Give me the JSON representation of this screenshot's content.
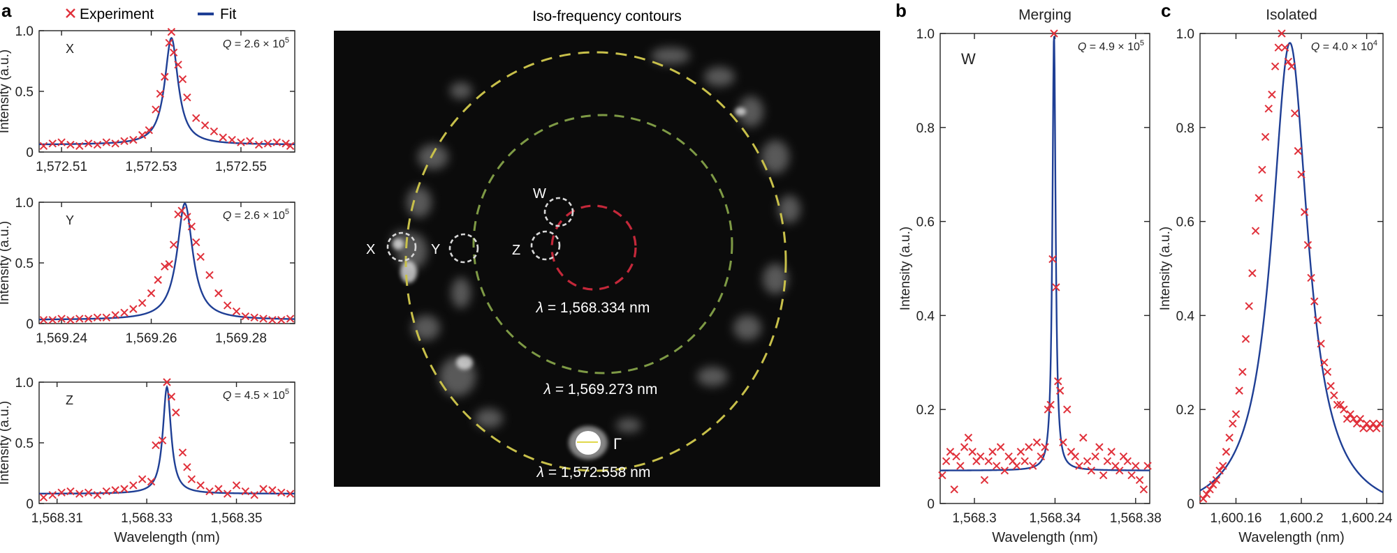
{
  "legend": {
    "experiment_label": "Experiment",
    "fit_label": "Fit"
  },
  "panel_letters": {
    "a": "a",
    "b": "b",
    "c": "c"
  },
  "colors": {
    "experiment": "#e0303a",
    "fit": "#1f3f95",
    "axis": "#222222",
    "image_bg": "#0b0b0b",
    "contour_outer": "#c8c04a",
    "contour_middle": "#7e9a45",
    "contour_inner": "#c4283a",
    "marker_circle": "#d8d8d8",
    "image_text": "#ffffff"
  },
  "chart_data": [
    {
      "id": "aX",
      "type": "scatter",
      "mode_label": "X",
      "q_text": [
        "Q",
        " = 2.6 × 10",
        "5"
      ],
      "xlabel": "",
      "ylabel": "Intensity (a.u.)",
      "xlim": [
        1572.505,
        1572.562
      ],
      "ylim": [
        0,
        1.0
      ],
      "xticks": [
        1572.51,
        1572.53,
        1572.55
      ],
      "xtick_labels": [
        "1,572.51",
        "1,572.53",
        "1,572.55"
      ],
      "yticks": [
        0,
        0.5,
        1.0
      ],
      "ytick_labels": [
        "0",
        "0.5",
        "1.0"
      ],
      "fit": {
        "center": 1572.5345,
        "hwhm": 0.0018,
        "offset": 0.06,
        "amp": 0.88
      },
      "series": [
        {
          "name": "Experiment",
          "x": [
            1572.506,
            1572.508,
            1572.51,
            1572.512,
            1572.514,
            1572.516,
            1572.518,
            1572.52,
            1572.522,
            1572.524,
            1572.526,
            1572.528,
            1572.5295,
            1572.531,
            1572.532,
            1572.533,
            1572.534,
            1572.5345,
            1572.535,
            1572.536,
            1572.537,
            1572.538,
            1572.54,
            1572.542,
            1572.544,
            1572.546,
            1572.548,
            1572.55,
            1572.552,
            1572.554,
            1572.556,
            1572.558,
            1572.56,
            1572.561
          ],
          "y": [
            0.05,
            0.07,
            0.08,
            0.06,
            0.05,
            0.07,
            0.06,
            0.08,
            0.07,
            0.09,
            0.1,
            0.14,
            0.18,
            0.35,
            0.48,
            0.62,
            0.9,
            0.99,
            0.82,
            0.72,
            0.6,
            0.45,
            0.28,
            0.22,
            0.17,
            0.12,
            0.1,
            0.08,
            0.09,
            0.06,
            0.07,
            0.08,
            0.07,
            0.05
          ]
        }
      ]
    },
    {
      "id": "aY",
      "type": "scatter",
      "mode_label": "Y",
      "q_text": [
        "Q",
        " = 2.6 × 10",
        "5"
      ],
      "xlabel": "",
      "ylabel": "Intensity (a.u.)",
      "xlim": [
        1569.235,
        1569.292
      ],
      "ylim": [
        0,
        1.0
      ],
      "xticks": [
        1569.24,
        1569.26,
        1569.28
      ],
      "xtick_labels": [
        "1,569.24",
        "1,569.26",
        "1,569.28"
      ],
      "yticks": [
        0,
        0.5,
        1.0
      ],
      "ytick_labels": [
        "0",
        "0.5",
        "1.0"
      ],
      "fit": {
        "center": 1569.2675,
        "hwhm": 0.0021,
        "offset": 0.03,
        "amp": 0.96
      },
      "series": [
        {
          "name": "Experiment",
          "x": [
            1569.236,
            1569.238,
            1569.24,
            1569.242,
            1569.244,
            1569.246,
            1569.248,
            1569.25,
            1569.252,
            1569.254,
            1569.256,
            1569.258,
            1569.26,
            1569.2615,
            1569.263,
            1569.264,
            1569.265,
            1569.266,
            1569.2668,
            1569.268,
            1569.269,
            1569.27,
            1569.271,
            1569.273,
            1569.275,
            1569.277,
            1569.279,
            1569.281,
            1569.283,
            1569.285,
            1569.287,
            1569.289,
            1569.291
          ],
          "y": [
            0.03,
            0.03,
            0.04,
            0.03,
            0.04,
            0.04,
            0.05,
            0.05,
            0.07,
            0.09,
            0.12,
            0.17,
            0.25,
            0.36,
            0.47,
            0.49,
            0.65,
            0.9,
            0.93,
            0.88,
            0.8,
            0.67,
            0.55,
            0.4,
            0.25,
            0.15,
            0.1,
            0.06,
            0.05,
            0.04,
            0.03,
            0.03,
            0.04
          ]
        }
      ]
    },
    {
      "id": "aZ",
      "type": "scatter",
      "mode_label": "Z",
      "q_text": [
        "Q",
        " = 4.5 × 10",
        "5"
      ],
      "xlabel": "Wavelength (nm)",
      "ylabel": "Intensity (a.u.)",
      "xlim": [
        1568.306,
        1568.363
      ],
      "ylim": [
        0,
        1.0
      ],
      "xticks": [
        1568.31,
        1568.33,
        1568.35
      ],
      "xtick_labels": [
        "1,568.31",
        "1,568.33",
        "1,568.35"
      ],
      "yticks": [
        0,
        0.5,
        1.0
      ],
      "ytick_labels": [
        "0",
        "0.5",
        "1.0"
      ],
      "fit": {
        "center": 1568.3345,
        "hwhm": 0.0011,
        "offset": 0.08,
        "amp": 0.88
      },
      "series": [
        {
          "name": "Experiment",
          "x": [
            1568.307,
            1568.309,
            1568.311,
            1568.313,
            1568.315,
            1568.317,
            1568.319,
            1568.321,
            1568.323,
            1568.325,
            1568.327,
            1568.329,
            1568.331,
            1568.332,
            1568.3335,
            1568.3345,
            1568.3355,
            1568.3365,
            1568.338,
            1568.339,
            1568.34,
            1568.342,
            1568.344,
            1568.346,
            1568.348,
            1568.35,
            1568.352,
            1568.354,
            1568.356,
            1568.358,
            1568.36,
            1568.362
          ],
          "y": [
            0.05,
            0.07,
            0.09,
            0.1,
            0.08,
            0.09,
            0.07,
            0.1,
            0.11,
            0.12,
            0.15,
            0.2,
            0.18,
            0.48,
            0.52,
            1.0,
            0.88,
            0.75,
            0.42,
            0.3,
            0.2,
            0.15,
            0.1,
            0.12,
            0.08,
            0.15,
            0.1,
            0.07,
            0.12,
            0.11,
            0.09,
            0.08
          ]
        }
      ]
    },
    {
      "id": "b",
      "type": "scatter",
      "title": "Merging",
      "mode_label": "W",
      "q_text": [
        "Q",
        " = 4.9 × 10",
        "5"
      ],
      "xlabel": "Wavelength (nm)",
      "ylabel": "Intensity (a.u.)",
      "xlim": [
        1568.283,
        1568.387
      ],
      "ylim": [
        0,
        1.0
      ],
      "xticks": [
        1568.3,
        1568.34,
        1568.38
      ],
      "xtick_labels": [
        "1,568.3",
        "1,568.34",
        "1,568.38"
      ],
      "yticks": [
        0,
        0.2,
        0.4,
        0.6,
        0.8,
        1.0
      ],
      "ytick_labels": [
        "0",
        "0.2",
        "0.4",
        "0.6",
        "0.8",
        "1.0"
      ],
      "fit": {
        "center": 1568.3395,
        "hwhm": 0.00095,
        "offset": 0.07,
        "amp": 0.93
      },
      "series": [
        {
          "name": "Experiment",
          "x": [
            1568.284,
            1568.286,
            1568.288,
            1568.29,
            1568.291,
            1568.293,
            1568.295,
            1568.297,
            1568.299,
            1568.301,
            1568.303,
            1568.305,
            1568.307,
            1568.309,
            1568.311,
            1568.313,
            1568.315,
            1568.317,
            1568.319,
            1568.321,
            1568.323,
            1568.325,
            1568.327,
            1568.329,
            1568.331,
            1568.333,
            1568.335,
            1568.3365,
            1568.3378,
            1568.3388,
            1568.3395,
            1568.3405,
            1568.3415,
            1568.3425,
            1568.344,
            1568.346,
            1568.348,
            1568.35,
            1568.352,
            1568.354,
            1568.356,
            1568.358,
            1568.36,
            1568.362,
            1568.364,
            1568.366,
            1568.368,
            1568.37,
            1568.372,
            1568.374,
            1568.376,
            1568.378,
            1568.38,
            1568.382,
            1568.384,
            1568.386
          ],
          "y": [
            0.06,
            0.09,
            0.11,
            0.03,
            0.1,
            0.08,
            0.12,
            0.14,
            0.11,
            0.09,
            0.1,
            0.05,
            0.09,
            0.11,
            0.08,
            0.12,
            0.07,
            0.1,
            0.09,
            0.08,
            0.11,
            0.09,
            0.12,
            0.08,
            0.13,
            0.1,
            0.12,
            0.2,
            0.21,
            0.52,
            1.0,
            0.46,
            0.26,
            0.24,
            0.13,
            0.2,
            0.11,
            0.1,
            0.08,
            0.14,
            0.09,
            0.07,
            0.1,
            0.12,
            0.06,
            0.09,
            0.11,
            0.08,
            0.07,
            0.1,
            0.09,
            0.06,
            0.08,
            0.05,
            0.03,
            0.08
          ]
        }
      ]
    },
    {
      "id": "c",
      "type": "scatter",
      "title": "Isolated",
      "q_text": [
        "Q",
        " = 4.0 × 10",
        "4"
      ],
      "xlabel": "Wavelength (nm)",
      "ylabel": "Intensity (a.u.)",
      "xlim": [
        1600.138,
        1600.25
      ],
      "ylim": [
        0,
        1.0
      ],
      "xticks": [
        1600.16,
        1600.2,
        1600.24
      ],
      "xtick_labels": [
        "1,600.16",
        "1,600.2",
        "1,600.24"
      ],
      "yticks": [
        0,
        0.2,
        0.4,
        0.6,
        0.8,
        1.0
      ],
      "ytick_labels": [
        "0",
        "0.2",
        "0.4",
        "0.6",
        "0.8",
        "1.0"
      ],
      "fit": {
        "center": 1600.193,
        "hwhm": 0.0135,
        "offset": -0.03,
        "amp": 1.01
      },
      "series": [
        {
          "name": "Experiment",
          "x": [
            1600.14,
            1600.142,
            1600.144,
            1600.146,
            1600.148,
            1600.15,
            1600.152,
            1600.154,
            1600.156,
            1600.158,
            1600.16,
            1600.162,
            1600.164,
            1600.166,
            1600.168,
            1600.17,
            1600.172,
            1600.174,
            1600.176,
            1600.178,
            1600.18,
            1600.182,
            1600.184,
            1600.186,
            1600.188,
            1600.19,
            1600.192,
            1600.194,
            1600.196,
            1600.198,
            1600.2,
            1600.202,
            1600.204,
            1600.206,
            1600.208,
            1600.21,
            1600.212,
            1600.214,
            1600.216,
            1600.218,
            1600.22,
            1600.222,
            1600.224,
            1600.226,
            1600.228,
            1600.23,
            1600.232,
            1600.234,
            1600.236,
            1600.238,
            1600.24,
            1600.242,
            1600.244,
            1600.246,
            1600.248
          ],
          "y": [
            0.01,
            0.02,
            0.03,
            0.04,
            0.05,
            0.07,
            0.08,
            0.11,
            0.14,
            0.17,
            0.19,
            0.24,
            0.28,
            0.35,
            0.42,
            0.49,
            0.58,
            0.65,
            0.71,
            0.78,
            0.84,
            0.87,
            0.93,
            0.97,
            1.0,
            0.97,
            0.94,
            0.93,
            0.83,
            0.75,
            0.7,
            0.62,
            0.55,
            0.48,
            0.43,
            0.39,
            0.34,
            0.3,
            0.28,
            0.25,
            0.23,
            0.21,
            0.21,
            0.2,
            0.18,
            0.19,
            0.18,
            0.17,
            0.18,
            0.16,
            0.17,
            0.16,
            0.17,
            0.16,
            0.17
          ]
        }
      ]
    }
  ],
  "image_panel": {
    "title": "Iso-frequency contours",
    "contour_labels": [
      {
        "lambda": "λ",
        "text": " = 1,568.334 nm"
      },
      {
        "lambda": "λ",
        "text": " = 1,569.273 nm"
      },
      {
        "lambda": "λ",
        "text": " = 1,572.558 nm"
      }
    ],
    "mode_labels": [
      "X",
      "Y",
      "Z",
      "W"
    ],
    "gamma_label": "Γ"
  }
}
